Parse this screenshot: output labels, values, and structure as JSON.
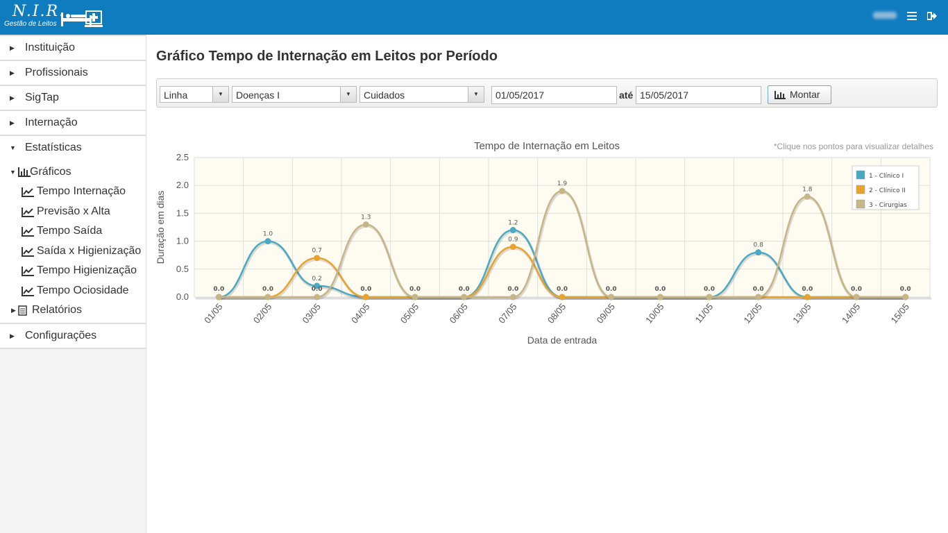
{
  "app": {
    "logo_main": "N.I.R.",
    "logo_sub": "Gestão de Leitos",
    "user_name": "daniel"
  },
  "sidebar": {
    "items": [
      {
        "label": "Instituição"
      },
      {
        "label": "Profissionais"
      },
      {
        "label": "SigTap"
      },
      {
        "label": "Internação"
      },
      {
        "label": "Estatísticas"
      }
    ],
    "graficos": {
      "label": "Gráficos",
      "items": [
        {
          "label": "Tempo Internação"
        },
        {
          "label": "Previsão x Alta"
        },
        {
          "label": "Tempo Saída"
        },
        {
          "label": "Saída x Higienização"
        },
        {
          "label": "Tempo Higienização"
        },
        {
          "label": "Tempo Ociosidade"
        }
      ]
    },
    "relatorios": {
      "label": "Relatórios"
    },
    "configuracoes": {
      "label": "Configurações"
    }
  },
  "page": {
    "title": "Gráfico Tempo de Internação em Leitos por Período"
  },
  "filters": {
    "chart_type": "Linha",
    "group": "Doenças I",
    "category": "Cuidados",
    "date_from": "01/05/2017",
    "date_sep": "até",
    "date_to": "15/05/2017",
    "submit_label": "Montar"
  },
  "chart_data": {
    "type": "line",
    "title": "Tempo de Internação em Leitos",
    "hint": "*Clique nos pontos para visualizar detalhes",
    "xlabel": "Data de entrada",
    "ylabel": "Duração em dias",
    "ylim": [
      0,
      2.5
    ],
    "yticks": [
      "0.0",
      "0.5",
      "1.0",
      "1.5",
      "2.0",
      "2.5"
    ],
    "categories": [
      "01/05",
      "02/05",
      "03/05",
      "04/05",
      "05/05",
      "06/05",
      "07/05",
      "08/05",
      "09/05",
      "10/05",
      "11/05",
      "12/05",
      "13/05",
      "14/05",
      "15/05"
    ],
    "legend_position": "top-right",
    "grid": true,
    "series": [
      {
        "name": "1 - Clínico I",
        "color": "#4aa9c4",
        "values": [
          0,
          1.0,
          0.2,
          0,
          0,
          0,
          1.2,
          0,
          0,
          0,
          0,
          0.8,
          0,
          0,
          0
        ]
      },
      {
        "name": "2 - Clínico II",
        "color": "#e8a32e",
        "values": [
          0,
          0,
          0.7,
          0,
          0,
          0,
          0.9,
          0,
          0,
          0,
          0,
          0,
          0,
          0,
          0
        ]
      },
      {
        "name": "3 - Cirurgias",
        "color": "#c6b586",
        "values": [
          0,
          0,
          0,
          1.3,
          0,
          0,
          0,
          1.9,
          0,
          0,
          0,
          0,
          1.8,
          0,
          0
        ]
      }
    ],
    "point_labels": [
      {
        "category": "01/05",
        "label": "0.0"
      },
      {
        "category": "02/05",
        "label": "1.0"
      },
      {
        "category": "02/05",
        "label": "0.0"
      },
      {
        "category": "03/05",
        "label": "0.7"
      },
      {
        "category": "03/05",
        "label": "0.2"
      },
      {
        "category": "03/05",
        "label": "0.0"
      },
      {
        "category": "04/05",
        "label": "1.3"
      },
      {
        "category": "04/05",
        "label": "0.0"
      },
      {
        "category": "05/05",
        "label": "0.0"
      },
      {
        "category": "06/05",
        "label": "0.0"
      },
      {
        "category": "07/05",
        "label": "1.2"
      },
      {
        "category": "07/05",
        "label": "0.9"
      },
      {
        "category": "07/05",
        "label": "0.0"
      },
      {
        "category": "08/05",
        "label": "1.9"
      },
      {
        "category": "08/05",
        "label": "0.0"
      },
      {
        "category": "09/05",
        "label": "0.0"
      },
      {
        "category": "10/05",
        "label": "0.0"
      },
      {
        "category": "11/05",
        "label": "0.0"
      },
      {
        "category": "12/05",
        "label": "0.8"
      },
      {
        "category": "12/05",
        "label": "0.0"
      },
      {
        "category": "13/05",
        "label": "1.8"
      },
      {
        "category": "13/05",
        "label": "0.0"
      },
      {
        "category": "14/05",
        "label": "0.0"
      },
      {
        "category": "15/05",
        "label": "0.0"
      }
    ]
  }
}
